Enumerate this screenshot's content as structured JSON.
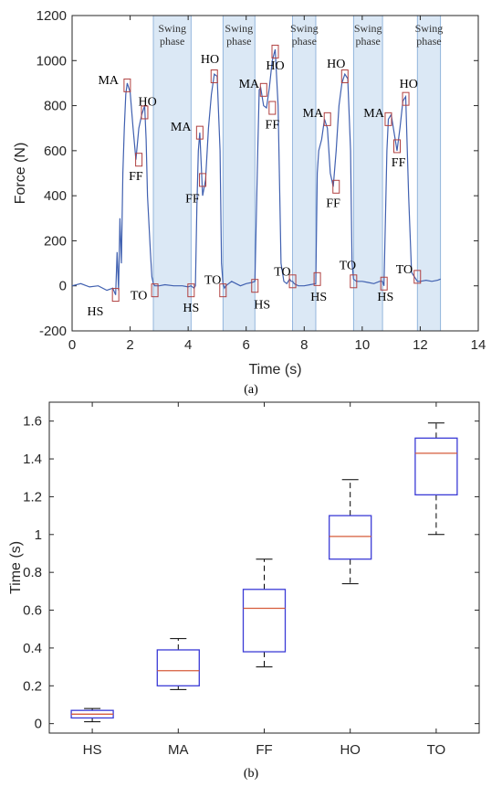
{
  "chart_data": [
    {
      "type": "line",
      "panel_label": "(a)",
      "xlabel": "Time (s)",
      "ylabel": "Force (N)",
      "xlim": [
        0,
        14
      ],
      "ylim": [
        -200,
        1200
      ],
      "xticks": [
        "0",
        "2",
        "4",
        "6",
        "8",
        "10",
        "12",
        "14"
      ],
      "yticks": [
        "-200",
        "0",
        "200",
        "400",
        "600",
        "800",
        "1000",
        "1200"
      ],
      "line_color": "#4060b0",
      "swing_phase": {
        "label_line1": "Swing",
        "label_line2": "phase",
        "fill": "#dbe8f5",
        "intervals": [
          [
            2.8,
            4.1
          ],
          [
            5.2,
            6.3
          ],
          [
            7.6,
            8.4
          ],
          [
            9.7,
            10.7
          ],
          [
            11.9,
            12.7
          ]
        ]
      },
      "series": [
        {
          "x": [
            0.0,
            0.3,
            0.6,
            0.9,
            1.2,
            1.4,
            1.5,
            1.55,
            1.6,
            1.65,
            1.7,
            1.75,
            1.8,
            1.85,
            1.9,
            1.95,
            2.0,
            2.1,
            2.2,
            2.3,
            2.4,
            2.5,
            2.55,
            2.6,
            2.7,
            2.75,
            2.8,
            2.85,
            2.9,
            3.0,
            3.2,
            3.5,
            3.8,
            4.0,
            4.1,
            4.2,
            4.25,
            4.3,
            4.35,
            4.4,
            4.5,
            4.6,
            4.7,
            4.8,
            4.9,
            5.0,
            5.1,
            5.15,
            5.2,
            5.25,
            5.3,
            5.5,
            5.8,
            6.0,
            6.2,
            6.3,
            6.4,
            6.45,
            6.5,
            6.6,
            6.7,
            6.8,
            6.9,
            7.0,
            7.1,
            7.2,
            7.3,
            7.4,
            7.5,
            7.55,
            7.6,
            7.65,
            7.8,
            8.0,
            8.2,
            8.4,
            8.45,
            8.5,
            8.6,
            8.7,
            8.8,
            8.9,
            9.0,
            9.1,
            9.2,
            9.3,
            9.4,
            9.5,
            9.6,
            9.65,
            9.7,
            9.8,
            10.0,
            10.2,
            10.4,
            10.6,
            10.7,
            10.75,
            10.8,
            10.85,
            10.9,
            11.0,
            11.1,
            11.2,
            11.3,
            11.4,
            11.5,
            11.6,
            11.7,
            11.8,
            11.85,
            11.9,
            12.0,
            12.2,
            12.4,
            12.6,
            12.7
          ],
          "y": [
            0,
            10,
            -5,
            0,
            -20,
            -10,
            -40,
            150,
            -20,
            300,
            100,
            500,
            700,
            850,
            900,
            880,
            860,
            700,
            560,
            700,
            760,
            800,
            650,
            400,
            150,
            40,
            10,
            0,
            0,
            0,
            5,
            0,
            0,
            -5,
            0,
            -10,
            0,
            350,
            600,
            680,
            400,
            470,
            700,
            850,
            940,
            930,
            600,
            100,
            10,
            -10,
            0,
            20,
            0,
            10,
            15,
            20,
            600,
            870,
            880,
            800,
            790,
            880,
            1000,
            1050,
            800,
            100,
            20,
            10,
            30,
            20,
            20,
            10,
            0,
            0,
            5,
            10,
            500,
            600,
            650,
            740,
            700,
            500,
            440,
            600,
            800,
            900,
            940,
            920,
            600,
            100,
            30,
            20,
            20,
            15,
            10,
            20,
            20,
            0,
            300,
            600,
            740,
            760,
            680,
            600,
            700,
            820,
            840,
            400,
            60,
            40,
            30,
            20,
            20,
            25,
            20,
            25,
            30
          ]
        }
      ],
      "annotations": [
        {
          "text": "MA",
          "x": 1.9,
          "y": 890
        },
        {
          "text": "HO",
          "x": 2.5,
          "y": 770
        },
        {
          "text": "FF",
          "x": 2.3,
          "y": 560
        },
        {
          "text": "HS",
          "x": 1.5,
          "y": -40
        },
        {
          "text": "TO",
          "x": 2.85,
          "y": -20
        },
        {
          "text": "MA",
          "x": 4.4,
          "y": 680
        },
        {
          "text": "HO",
          "x": 4.9,
          "y": 930
        },
        {
          "text": "FF",
          "x": 4.5,
          "y": 470
        },
        {
          "text": "HS",
          "x": 4.1,
          "y": -20
        },
        {
          "text": "TO",
          "x": 5.2,
          "y": -20
        },
        {
          "text": "MA",
          "x": 6.6,
          "y": 870
        },
        {
          "text": "HO",
          "x": 7.0,
          "y": 1040
        },
        {
          "text": "FF",
          "x": 6.9,
          "y": 790
        },
        {
          "text": "HS",
          "x": 6.3,
          "y": 0
        },
        {
          "text": "TO",
          "x": 7.6,
          "y": 20
        },
        {
          "text": "MA",
          "x": 8.8,
          "y": 740
        },
        {
          "text": "HO",
          "x": 9.4,
          "y": 930
        },
        {
          "text": "FF",
          "x": 9.1,
          "y": 440
        },
        {
          "text": "HS",
          "x": 8.45,
          "y": 30
        },
        {
          "text": "TO",
          "x": 9.7,
          "y": 20
        },
        {
          "text": "MA",
          "x": 10.9,
          "y": 740
        },
        {
          "text": "HO",
          "x": 11.5,
          "y": 830
        },
        {
          "text": "FF",
          "x": 11.2,
          "y": 620
        },
        {
          "text": "HS",
          "x": 10.75,
          "y": 10
        },
        {
          "text": "TO",
          "x": 11.9,
          "y": 40
        }
      ],
      "annotation_labels": [
        {
          "text": "MA",
          "x": 1.25,
          "y": 915
        },
        {
          "text": "HO",
          "x": 2.6,
          "y": 820
        },
        {
          "text": "FF",
          "x": 2.2,
          "y": 490
        },
        {
          "text": "HS",
          "x": 0.8,
          "y": -110
        },
        {
          "text": "TO",
          "x": 2.3,
          "y": -40
        },
        {
          "text": "MA",
          "x": 3.75,
          "y": 710
        },
        {
          "text": "HO",
          "x": 4.75,
          "y": 1010
        },
        {
          "text": "FF",
          "x": 4.15,
          "y": 390
        },
        {
          "text": "HS",
          "x": 4.1,
          "y": -95
        },
        {
          "text": "TO",
          "x": 4.85,
          "y": 30
        },
        {
          "text": "MA",
          "x": 6.1,
          "y": 900
        },
        {
          "text": "HO",
          "x": 7.0,
          "y": 980
        },
        {
          "text": "FF",
          "x": 6.9,
          "y": 720
        },
        {
          "text": "HS",
          "x": 6.55,
          "y": -80
        },
        {
          "text": "TO",
          "x": 7.25,
          "y": 65
        },
        {
          "text": "MA",
          "x": 8.3,
          "y": 770
        },
        {
          "text": "HO",
          "x": 9.1,
          "y": 990
        },
        {
          "text": "FF",
          "x": 9.0,
          "y": 370
        },
        {
          "text": "HS",
          "x": 8.5,
          "y": -45
        },
        {
          "text": "TO",
          "x": 9.5,
          "y": 95
        },
        {
          "text": "MA",
          "x": 10.4,
          "y": 770
        },
        {
          "text": "HO",
          "x": 11.6,
          "y": 900
        },
        {
          "text": "FF",
          "x": 11.25,
          "y": 550
        },
        {
          "text": "HS",
          "x": 10.8,
          "y": -45
        },
        {
          "text": "TO",
          "x": 11.45,
          "y": 75
        }
      ]
    },
    {
      "type": "box",
      "panel_label": "(b)",
      "xlabel": "",
      "ylabel": "Time (s)",
      "ylim": [
        -0.05,
        1.7
      ],
      "yticks": [
        "0",
        "0.2",
        "0.4",
        "0.6",
        "0.8",
        "1",
        "1.2",
        "1.4",
        "1.6"
      ],
      "box_color": "#3b3bd6",
      "median_color": "#d65c3b",
      "categories": [
        "HS",
        "MA",
        "FF",
        "HO",
        "TO"
      ],
      "boxes": [
        {
          "name": "HS",
          "min": 0.01,
          "q1": 0.03,
          "median": 0.05,
          "q3": 0.07,
          "max": 0.08
        },
        {
          "name": "MA",
          "min": 0.18,
          "q1": 0.2,
          "median": 0.28,
          "q3": 0.39,
          "max": 0.45
        },
        {
          "name": "FF",
          "min": 0.3,
          "q1": 0.38,
          "median": 0.61,
          "q3": 0.71,
          "max": 0.87
        },
        {
          "name": "HO",
          "min": 0.74,
          "q1": 0.87,
          "median": 0.99,
          "q3": 1.1,
          "max": 1.29
        },
        {
          "name": "TO",
          "min": 1.0,
          "q1": 1.21,
          "median": 1.43,
          "q3": 1.51,
          "max": 1.59
        }
      ]
    }
  ]
}
